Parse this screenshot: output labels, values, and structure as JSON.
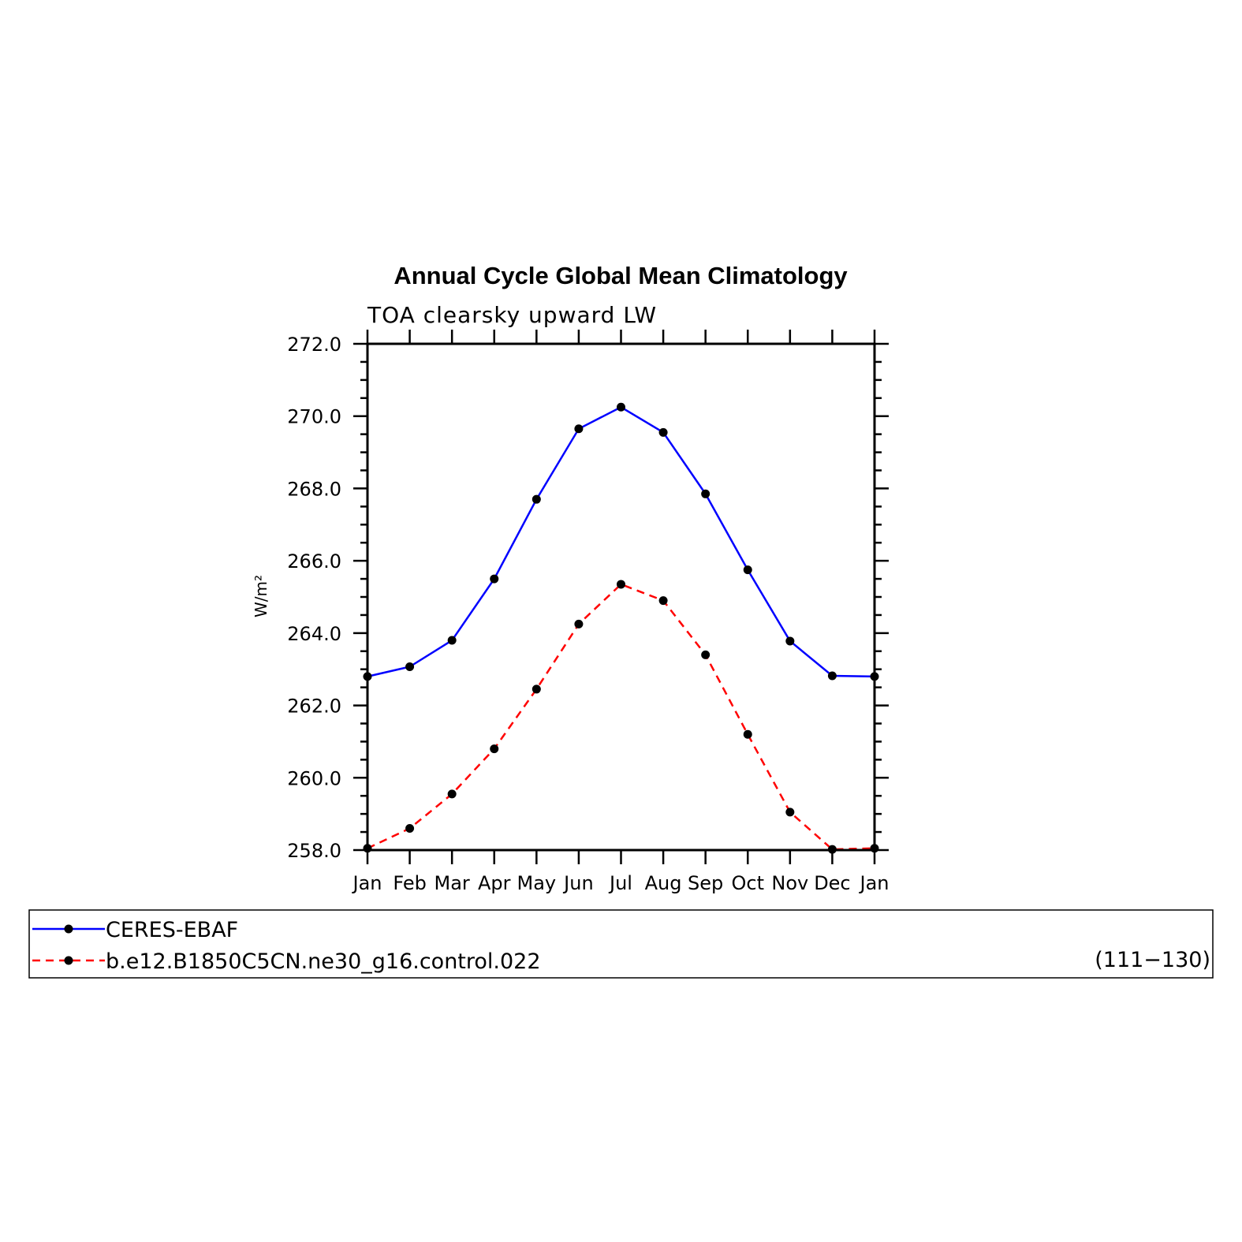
{
  "chart_data": {
    "type": "line",
    "title": "Annual Cycle Global Mean Climatology",
    "subtitle": "TOA clearsky upward LW",
    "xlabel": "",
    "ylabel": "W/m²",
    "categories": [
      "Jan",
      "Feb",
      "Mar",
      "Apr",
      "May",
      "Jun",
      "Jul",
      "Aug",
      "Sep",
      "Oct",
      "Nov",
      "Dec",
      "Jan"
    ],
    "ylim": [
      258.0,
      272.0
    ],
    "yticks": [
      "258.0",
      "260.0",
      "262.0",
      "264.0",
      "266.0",
      "268.0",
      "270.0",
      "272.0"
    ],
    "series": [
      {
        "name": "CERES-EBAF",
        "color": "#0000ff",
        "dash": "solid",
        "values": [
          262.8,
          263.07,
          263.8,
          265.5,
          267.7,
          269.65,
          270.25,
          269.55,
          267.85,
          265.75,
          263.78,
          262.82,
          262.8
        ]
      },
      {
        "name": "b.e12.B1850C5CN.ne30_g16.control.022",
        "color": "#ff0000",
        "dash": "dashed",
        "values": [
          258.05,
          258.6,
          259.55,
          260.8,
          262.45,
          264.25,
          265.35,
          264.9,
          263.4,
          261.2,
          259.05,
          258.02,
          258.05
        ]
      }
    ],
    "legend": {
      "position": "bottom",
      "note": "(111−130)"
    },
    "grid": false
  }
}
